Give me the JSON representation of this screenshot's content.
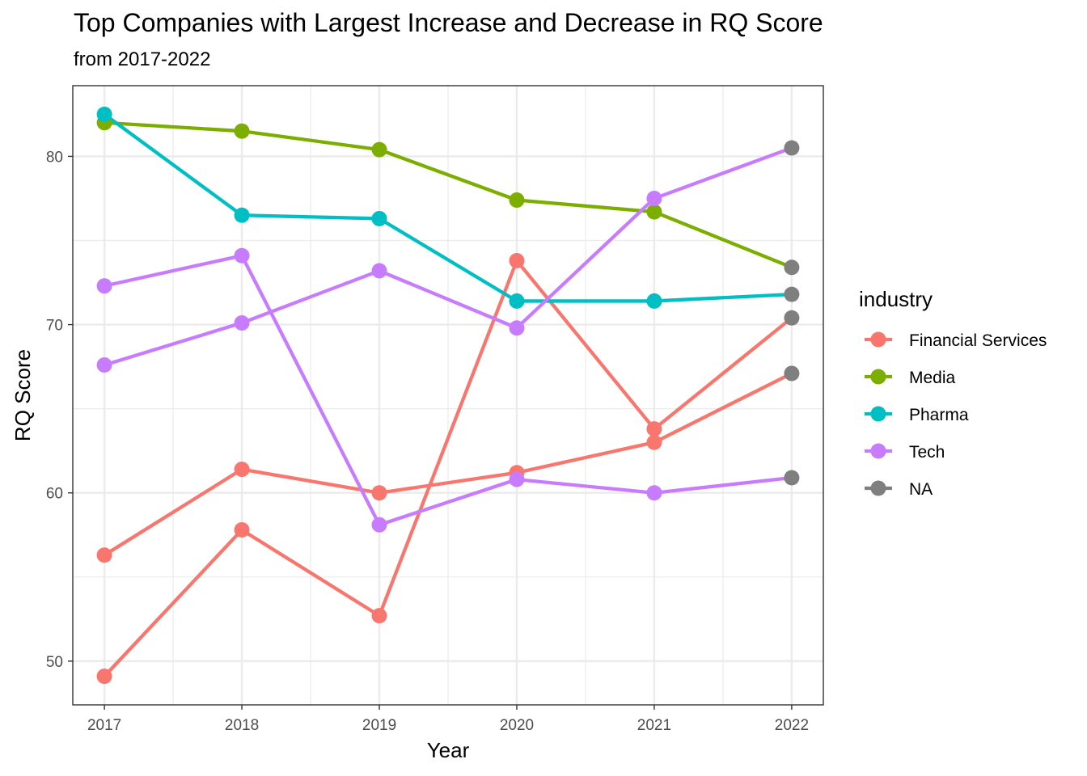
{
  "chart_data": {
    "type": "line",
    "title": "Top Companies with Largest Increase and Decrease in RQ Score",
    "subtitle": "from 2017-2022",
    "xlabel": "Year",
    "ylabel": "RQ Score",
    "x": [
      "2017",
      "2018",
      "2019",
      "2020",
      "2021",
      "2022"
    ],
    "xlim": [
      2016.77,
      2022.23
    ],
    "ylim": [
      47.4,
      84.2
    ],
    "yticks": [
      50,
      60,
      70,
      80
    ],
    "grid": true,
    "legend": {
      "title": "industry",
      "position": "right",
      "entries": [
        {
          "label": "Financial Services",
          "color": "#F8766D"
        },
        {
          "label": "Media",
          "color": "#7CAE00"
        },
        {
          "label": "Pharma",
          "color": "#00BFC4"
        },
        {
          "label": "Tech",
          "color": "#C77CFF"
        },
        {
          "label": "NA",
          "color": "#7F7F7F"
        }
      ]
    },
    "na_color": "#7F7F7F",
    "series": [
      {
        "industry": "Financial Services",
        "color": "#F8766D",
        "values": [
          49.1,
          57.8,
          52.7,
          73.8,
          63.8,
          70.4
        ],
        "industry_by_point": [
          "Financial Services",
          "Financial Services",
          "Financial Services",
          "Financial Services",
          "Financial Services",
          "NA"
        ]
      },
      {
        "industry": "Financial Services",
        "color": "#F8766D",
        "values": [
          56.3,
          61.4,
          60.0,
          61.2,
          63.0,
          67.1
        ],
        "industry_by_point": [
          "Financial Services",
          "Financial Services",
          "Financial Services",
          "Financial Services",
          "Financial Services",
          "NA"
        ]
      },
      {
        "industry": "Media",
        "color": "#7CAE00",
        "values": [
          82.0,
          81.5,
          80.4,
          77.4,
          76.7,
          73.4
        ],
        "industry_by_point": [
          "Media",
          "Media",
          "Media",
          "Media",
          "Media",
          "NA"
        ]
      },
      {
        "industry": "Pharma",
        "color": "#00BFC4",
        "values": [
          82.5,
          76.5,
          76.3,
          71.4,
          71.4,
          71.8
        ],
        "industry_by_point": [
          "Pharma",
          "Pharma",
          "Pharma",
          "Pharma",
          "Pharma",
          "NA"
        ]
      },
      {
        "industry": "Tech",
        "color": "#C77CFF",
        "values": [
          72.3,
          74.1,
          58.1,
          60.8,
          60.0,
          60.9
        ],
        "industry_by_point": [
          "Tech",
          "Tech",
          "Tech",
          "Tech",
          "Tech",
          "NA"
        ]
      },
      {
        "industry": "Tech",
        "color": "#C77CFF",
        "values": [
          67.6,
          70.1,
          73.2,
          69.8,
          77.5,
          80.5
        ],
        "industry_by_point": [
          "Tech",
          "Tech",
          "Tech",
          "Tech",
          "Tech",
          "NA"
        ]
      }
    ]
  }
}
